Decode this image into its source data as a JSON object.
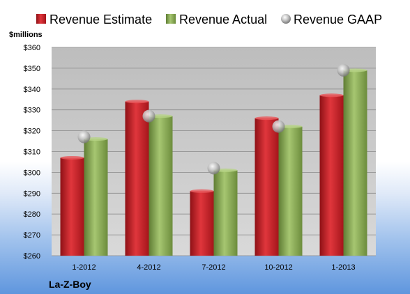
{
  "chart_data": {
    "type": "bar",
    "categories": [
      "1-2012",
      "4-2012",
      "7-2012",
      "10-2012",
      "1-2013"
    ],
    "series": [
      {
        "name": "Revenue Estimate",
        "kind": "bar",
        "values": [
          307,
          334,
          291,
          326,
          337
        ]
      },
      {
        "name": "Revenue Actual",
        "kind": "bar",
        "values": [
          316,
          327,
          301,
          322,
          349
        ]
      },
      {
        "name": "Revenue GAAP",
        "kind": "marker",
        "values": [
          317,
          327,
          302,
          322,
          349
        ]
      }
    ],
    "title": "",
    "unit_label": "$millions",
    "company": "La-Z-Boy",
    "ylim": [
      260,
      360
    ],
    "yticks": [
      "$260",
      "$270",
      "$280",
      "$290",
      "$300",
      "$310",
      "$320",
      "$330",
      "$340",
      "$350",
      "$360"
    ],
    "legend_position": "top",
    "grid": true,
    "colors": {
      "estimate": "#d3232a",
      "actual": "#8fb35a",
      "gaap": "#b8b8b8",
      "plot_bg": "#c9c9c9"
    }
  }
}
